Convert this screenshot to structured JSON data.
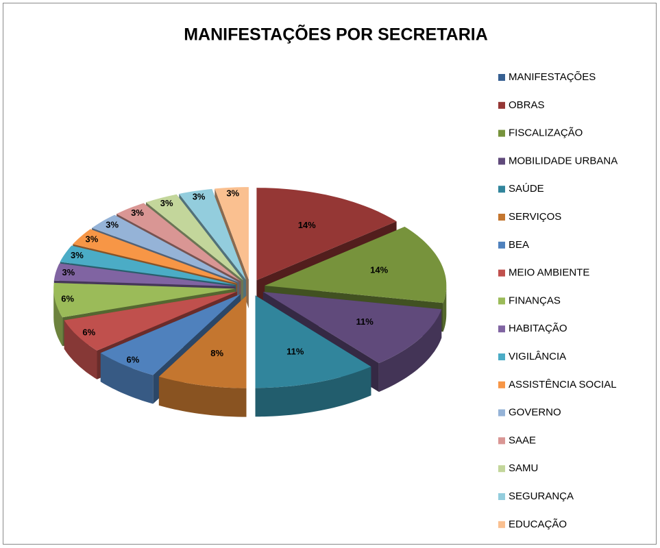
{
  "chart_data": {
    "type": "pie3d",
    "title": "MANIFESTAÇÕES  POR  SECRETARIA",
    "categories": [
      "MANIFESTAÇÕES",
      "OBRAS",
      "FISCALIZAÇÃO",
      "MOBILIDADE URBANA",
      "SAÚDE",
      "SERVIÇOS",
      "BEA",
      "MEIO AMBIENTE",
      "FINANÇAS",
      "HABITAÇÃO",
      "VIGILÂNCIA",
      "ASSISTÊNCIA SOCIAL",
      "GOVERNO",
      "SAAE",
      "SAMU",
      "SEGURANÇA",
      "EDUCAÇÃO"
    ],
    "values": [
      0,
      14,
      14,
      11,
      11,
      8,
      6,
      6,
      6,
      3,
      3,
      3,
      3,
      3,
      3,
      3,
      3
    ],
    "value_labels": [
      null,
      "14%",
      "14%",
      "11%",
      "11%",
      "8%",
      "6%",
      "6%",
      "6%",
      "3%",
      "3%",
      "3%",
      "3%",
      "3%",
      "3%",
      "3%",
      "3%"
    ],
    "colors": [
      "#376092",
      "#953735",
      "#77933C",
      "#604A7B",
      "#31859C",
      "#C4762F",
      "#4F81BD",
      "#C0504D",
      "#9BBB59",
      "#8064A2",
      "#4BACC6",
      "#F79646",
      "#95B3D7",
      "#D99694",
      "#C3D69B",
      "#93CDDD",
      "#FAC090"
    ],
    "legend": "right"
  }
}
